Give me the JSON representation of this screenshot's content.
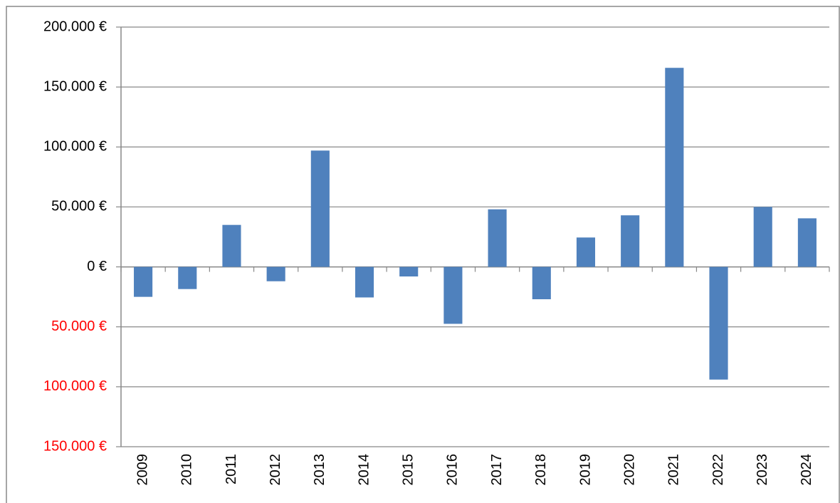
{
  "chart_data": {
    "type": "bar",
    "categories": [
      "2009",
      "2010",
      "2011",
      "2012",
      "2013",
      "2014",
      "2015",
      "2016",
      "2017",
      "2018",
      "2019",
      "2020",
      "2021",
      "2022",
      "2023",
      "2024"
    ],
    "values": [
      -25000,
      -18500,
      35000,
      -12000,
      97000,
      -25500,
      -8000,
      -47500,
      48000,
      -27000,
      24500,
      43000,
      166000,
      -94000,
      50000,
      40500
    ],
    "color": "#4f81bd",
    "ylim": [
      -150000,
      200000
    ],
    "yticks": [
      {
        "value": -150000,
        "label": "150.000 €"
      },
      {
        "value": -100000,
        "label": "100.000 €"
      },
      {
        "value": -50000,
        "label": "50.000 €"
      },
      {
        "value": 0,
        "label": "0 €"
      },
      {
        "value": 50000,
        "label": "50.000 €"
      },
      {
        "value": 100000,
        "label": "100.000 €"
      },
      {
        "value": 150000,
        "label": "150.000 €"
      },
      {
        "value": 200000,
        "label": "200.000 €"
      }
    ],
    "negative_tick_color": "#ff0000",
    "grid": true
  }
}
